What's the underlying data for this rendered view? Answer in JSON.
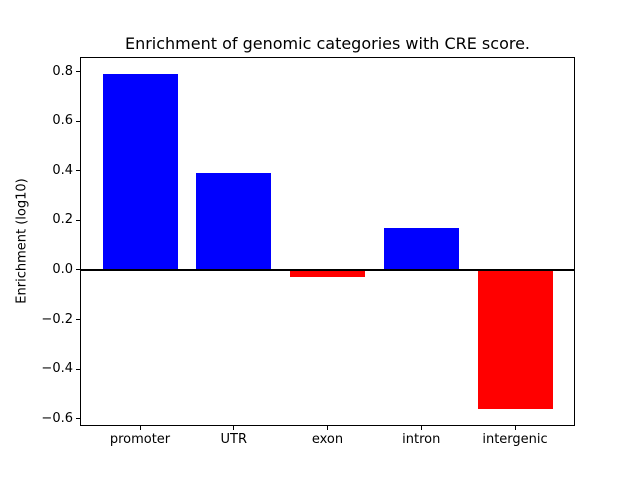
{
  "figure": {
    "background": "#ffffff"
  },
  "chart_data": {
    "type": "bar",
    "title": "Enrichment of genomic categories with CRE score.",
    "ylabel": "Enrichment (log10)",
    "xlabel": "",
    "categories": [
      "promoter",
      "UTR",
      "exon",
      "intron",
      "intergenic"
    ],
    "values": [
      0.79,
      0.39,
      -0.03,
      0.17,
      -0.56
    ],
    "bar_colors": [
      "#0000ff",
      "#0000ff",
      "#ff0000",
      "#0000ff",
      "#ff0000"
    ],
    "positive_color": "#0000ff",
    "negative_color": "#ff0000",
    "yticks": [
      0.8,
      0.6,
      0.4,
      0.2,
      0.0,
      -0.2,
      -0.4,
      -0.6
    ],
    "ytick_labels": [
      "0.8",
      "0.6",
      "0.4",
      "0.2",
      "0.0",
      "−0.2",
      "−0.4",
      "−0.6"
    ],
    "ylim": [
      -0.63,
      0.86
    ],
    "xlim": [
      -0.64,
      4.64
    ],
    "bar_width": 0.8,
    "zero_line": true,
    "grid": false,
    "legend": null,
    "axis_line_color": "#000000",
    "text_color": "#000000"
  }
}
